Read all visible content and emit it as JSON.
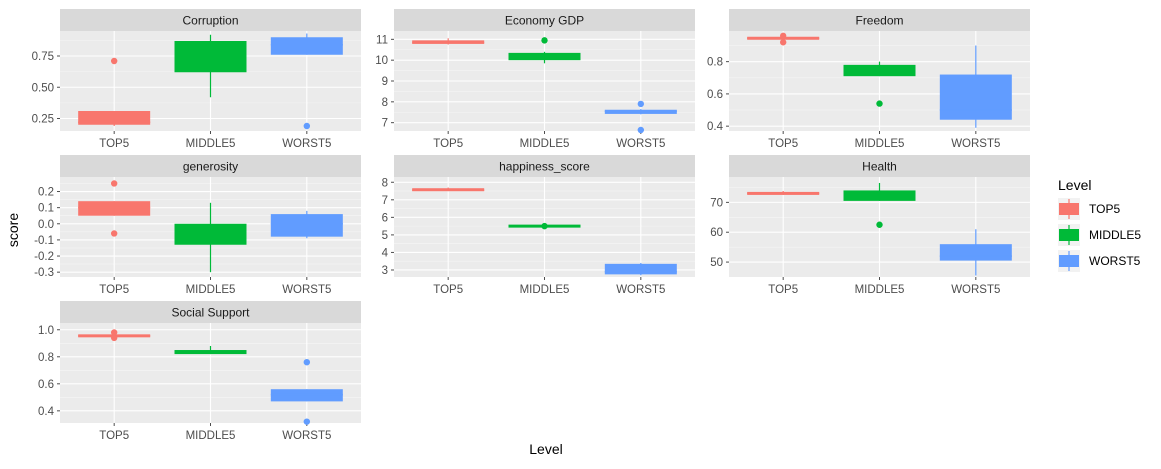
{
  "chart_data": {
    "type": "boxplot",
    "facet_by": "variable",
    "xlabel": "Level",
    "ylabel": "score",
    "legend": {
      "title": "Level",
      "placement": "right",
      "entries": [
        {
          "label": "TOP5",
          "color": "#F8766D"
        },
        {
          "label": "MIDDLE5",
          "color": "#00BA38"
        },
        {
          "label": "WORST5",
          "color": "#619CFF"
        }
      ]
    },
    "categories": [
      "TOP5",
      "MIDDLE5",
      "WORST5"
    ],
    "panels": [
      {
        "title": "Corruption",
        "ylim": [
          0.15,
          0.95
        ],
        "yticks": [
          0.25,
          0.5,
          0.75
        ],
        "ytick_labels": [
          "0.25",
          "0.50",
          "0.75"
        ],
        "boxes": [
          {
            "category": "TOP5",
            "whisker_low": 0.19,
            "q1": 0.2,
            "median": 0.22,
            "q3": 0.31,
            "whisker_high": 0.31,
            "outliers": [
              0.71
            ]
          },
          {
            "category": "MIDDLE5",
            "whisker_low": 0.42,
            "q1": 0.62,
            "median": 0.74,
            "q3": 0.87,
            "whisker_high": 0.92,
            "outliers": []
          },
          {
            "category": "WORST5",
            "whisker_low": 0.76,
            "q1": 0.76,
            "median": 0.84,
            "q3": 0.9,
            "whisker_high": 0.93,
            "outliers": [
              0.19
            ]
          }
        ]
      },
      {
        "title": "Economy GDP",
        "ylim": [
          6.6,
          11.4
        ],
        "yticks": [
          7,
          8,
          9,
          10,
          11
        ],
        "ytick_labels": [
          "7",
          "8",
          "9",
          "10",
          "11"
        ],
        "boxes": [
          {
            "category": "TOP5",
            "whisker_low": 10.75,
            "q1": 10.78,
            "median": 10.85,
            "q3": 10.95,
            "whisker_high": 11.05,
            "outliers": []
          },
          {
            "category": "MIDDLE5",
            "whisker_low": 9.85,
            "q1": 10.0,
            "median": 10.15,
            "q3": 10.35,
            "whisker_high": 10.4,
            "outliers": [
              10.95
            ]
          },
          {
            "category": "WORST5",
            "whisker_low": 7.4,
            "q1": 7.42,
            "median": 7.55,
            "q3": 7.62,
            "whisker_high": 7.65,
            "outliers": [
              7.9,
              6.65
            ]
          }
        ]
      },
      {
        "title": "Freedom",
        "ylim": [
          0.37,
          0.99
        ],
        "yticks": [
          0.4,
          0.6,
          0.8
        ],
        "ytick_labels": [
          "0.4",
          "0.6",
          "0.8"
        ],
        "boxes": [
          {
            "category": "TOP5",
            "whisker_low": 0.94,
            "q1": 0.94,
            "median": 0.945,
            "q3": 0.95,
            "whisker_high": 0.955,
            "outliers": [
              0.92,
              0.96
            ]
          },
          {
            "category": "MIDDLE5",
            "whisker_low": 0.71,
            "q1": 0.71,
            "median": 0.74,
            "q3": 0.78,
            "whisker_high": 0.8,
            "outliers": [
              0.54
            ]
          },
          {
            "category": "WORST5",
            "whisker_low": 0.39,
            "q1": 0.44,
            "median": 0.5,
            "q3": 0.72,
            "whisker_high": 0.9,
            "outliers": []
          }
        ]
      },
      {
        "title": "generosity",
        "ylim": [
          -0.33,
          0.29
        ],
        "yticks": [
          -0.3,
          -0.2,
          -0.1,
          0.0,
          0.1,
          0.2
        ],
        "ytick_labels": [
          "-0.3",
          "-0.2",
          "-0.1",
          "0.0",
          "0.1",
          "0.2"
        ],
        "boxes": [
          {
            "category": "TOP5",
            "whisker_low": 0.05,
            "q1": 0.05,
            "median": 0.1,
            "q3": 0.14,
            "whisker_high": 0.14,
            "outliers": [
              0.25,
              -0.06
            ]
          },
          {
            "category": "MIDDLE5",
            "whisker_low": -0.3,
            "q1": -0.13,
            "median": -0.05,
            "q3": 0.0,
            "whisker_high": 0.13,
            "outliers": []
          },
          {
            "category": "WORST5",
            "whisker_low": -0.09,
            "q1": -0.08,
            "median": 0.0,
            "q3": 0.06,
            "whisker_high": 0.08,
            "outliers": []
          }
        ]
      },
      {
        "title": "happiness_score",
        "ylim": [
          2.6,
          8.3
        ],
        "yticks": [
          3,
          4,
          5,
          6,
          7,
          8
        ],
        "ytick_labels": [
          "3",
          "4",
          "5",
          "6",
          "7",
          "8"
        ],
        "boxes": [
          {
            "category": "TOP5",
            "whisker_low": 7.5,
            "q1": 7.5,
            "median": 7.55,
            "q3": 7.65,
            "whisker_high": 7.7,
            "outliers": []
          },
          {
            "category": "MIDDLE5",
            "whisker_low": 5.45,
            "q1": 5.45,
            "median": 5.5,
            "q3": 5.55,
            "whisker_high": 5.6,
            "outliers": [
              5.5
            ]
          },
          {
            "category": "WORST5",
            "whisker_low": 2.7,
            "q1": 2.75,
            "median": 2.9,
            "q3": 3.35,
            "whisker_high": 3.4,
            "outliers": []
          }
        ]
      },
      {
        "title": "Health",
        "ylim": [
          45.0,
          78.5
        ],
        "yticks": [
          50,
          60,
          70
        ],
        "ytick_labels": [
          "50",
          "60",
          "70"
        ],
        "boxes": [
          {
            "category": "TOP5",
            "whisker_low": 72.5,
            "q1": 72.5,
            "median": 73.0,
            "q3": 73.5,
            "whisker_high": 73.8,
            "outliers": []
          },
          {
            "category": "MIDDLE5",
            "whisker_low": 70.5,
            "q1": 70.5,
            "median": 72.0,
            "q3": 74.0,
            "whisker_high": 76.5,
            "outliers": [
              62.5
            ]
          },
          {
            "category": "WORST5",
            "whisker_low": 45.5,
            "q1": 50.5,
            "median": 52.0,
            "q3": 56.0,
            "whisker_high": 61.0,
            "outliers": []
          }
        ]
      },
      {
        "title": "Social Support",
        "ylim": [
          0.31,
          1.05
        ],
        "yticks": [
          0.4,
          0.6,
          0.8,
          1.0
        ],
        "ytick_labels": [
          "0.4",
          "0.6",
          "0.8",
          "1.0"
        ],
        "boxes": [
          {
            "category": "TOP5",
            "whisker_low": 0.945,
            "q1": 0.945,
            "median": 0.955,
            "q3": 0.965,
            "whisker_high": 0.97,
            "outliers": [
              0.94,
              0.98
            ]
          },
          {
            "category": "MIDDLE5",
            "whisker_low": 0.82,
            "q1": 0.82,
            "median": 0.83,
            "q3": 0.85,
            "whisker_high": 0.88,
            "outliers": []
          },
          {
            "category": "WORST5",
            "whisker_low": 0.47,
            "q1": 0.47,
            "median": 0.52,
            "q3": 0.56,
            "whisker_high": 0.56,
            "outliers": [
              0.76,
              0.32
            ]
          }
        ]
      }
    ]
  }
}
